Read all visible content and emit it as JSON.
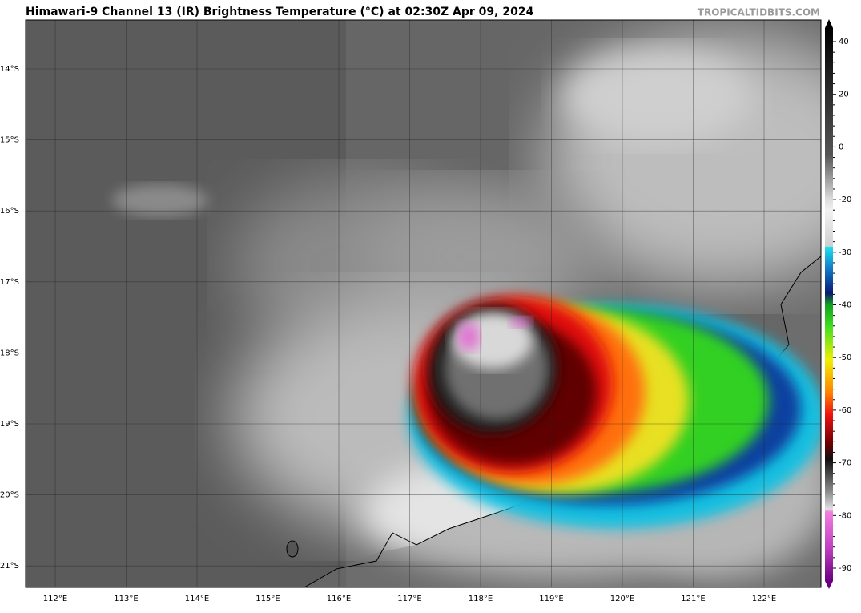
{
  "header": {
    "title": "Himawari-9 Channel 13 (IR) Brightness Temperature (°C) at 02:30Z Apr 09, 2024",
    "credit": "TROPICALTIDBITS.COM"
  },
  "map": {
    "latitude_labels": [
      "14°S",
      "15°S",
      "16°S",
      "17°S",
      "18°S",
      "19°S",
      "20°S",
      "21°S"
    ],
    "longitude_labels": [
      "112°E",
      "113°E",
      "114°E",
      "115°E",
      "116°E",
      "117°E",
      "118°E",
      "119°E",
      "120°E",
      "121°E",
      "122°E"
    ]
  },
  "colorbar": {
    "ticks": [
      40,
      20,
      0,
      -20,
      -30,
      -40,
      -50,
      -60,
      -70,
      -80,
      -90
    ]
  }
}
